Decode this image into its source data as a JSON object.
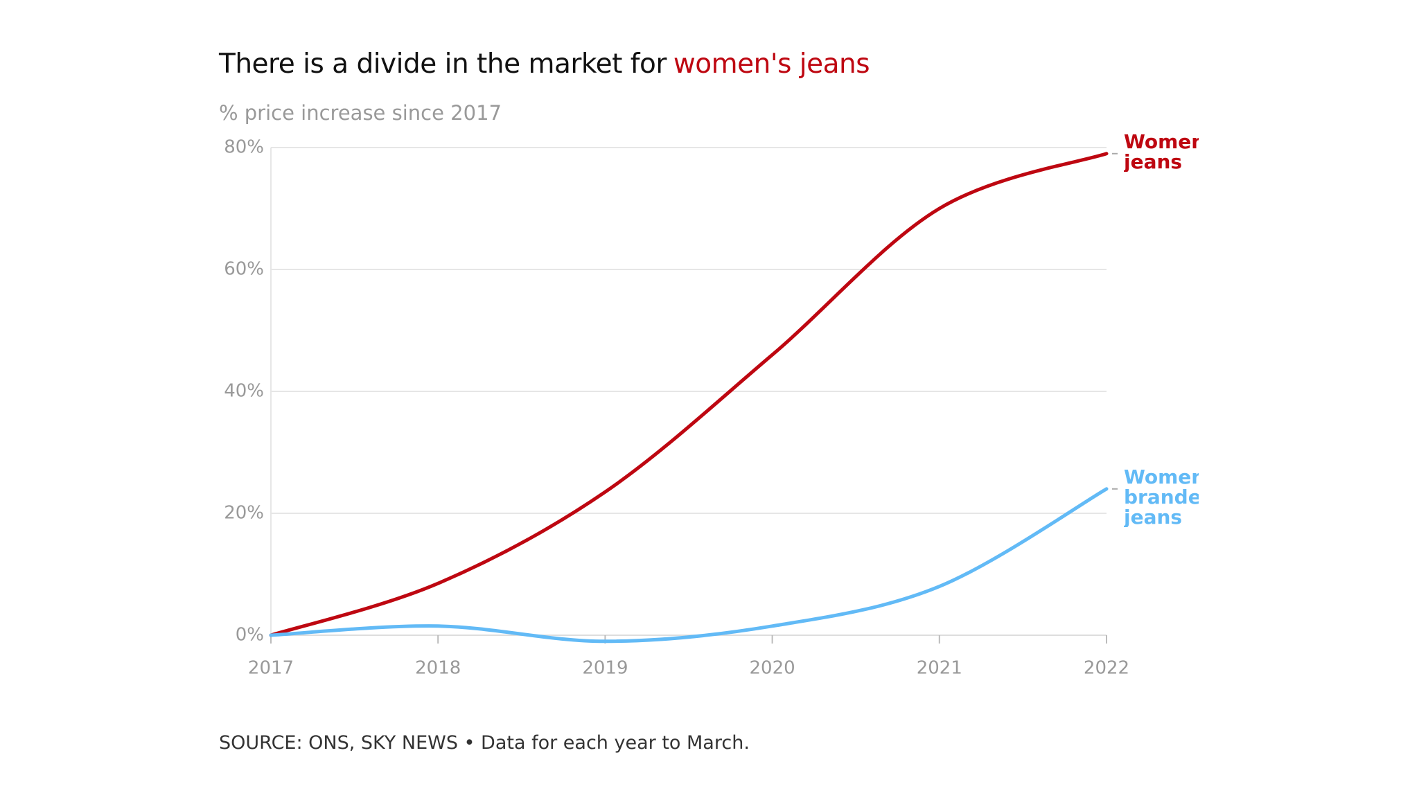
{
  "chart_data": {
    "type": "line",
    "title": "There is a divide in the market for",
    "title_highlight": "women's jeans",
    "subtitle": "% price increase since 2017",
    "source": "SOURCE: ONS, SKY NEWS • Data for each year to March.",
    "x": [
      2017,
      2018,
      2019,
      2020,
      2021,
      2022
    ],
    "xlim": [
      2017,
      2022
    ],
    "xticks": [
      2017,
      2018,
      2019,
      2020,
      2021,
      2022
    ],
    "ylim": [
      0,
      80
    ],
    "yticks": [
      {
        "value": 0,
        "label": "0%"
      },
      {
        "value": 20,
        "label": "20%"
      },
      {
        "value": 40,
        "label": "40%"
      },
      {
        "value": 60,
        "label": "60%"
      },
      {
        "value": 80,
        "label": "80%"
      }
    ],
    "grid": true,
    "series": [
      {
        "name": "Women's jeans",
        "color": "#be0711",
        "values": [
          0,
          8.5,
          23.5,
          46,
          70,
          79
        ]
      },
      {
        "name": "Women's branded jeans",
        "color": "#62baf6",
        "values": [
          0,
          1.5,
          -1,
          1.5,
          8,
          24
        ]
      }
    ]
  }
}
